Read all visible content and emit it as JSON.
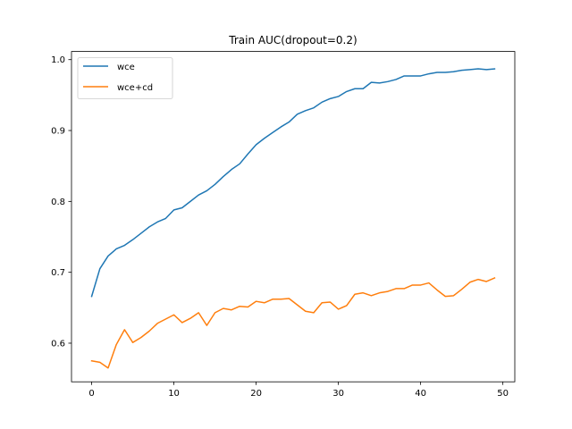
{
  "chart_data": {
    "type": "line",
    "title": "Train AUC(dropout=0.2)",
    "xlabel": "",
    "ylabel": "",
    "xlim": [
      -2.45,
      51.45
    ],
    "ylim": [
      0.5455,
      1.0115
    ],
    "xticks": [
      0,
      10,
      20,
      30,
      40,
      50
    ],
    "xtick_labels": [
      "0",
      "10",
      "20",
      "30",
      "40",
      "50"
    ],
    "yticks": [
      0.6,
      0.7,
      0.8,
      0.9,
      1.0
    ],
    "ytick_labels": [
      "0.6",
      "0.7",
      "0.8",
      "0.9",
      "1.0"
    ],
    "grid": false,
    "legend_position": "top-left",
    "x": [
      0,
      1,
      2,
      3,
      4,
      5,
      6,
      7,
      8,
      9,
      10,
      11,
      12,
      13,
      14,
      15,
      16,
      17,
      18,
      19,
      20,
      21,
      22,
      23,
      24,
      25,
      26,
      27,
      28,
      29,
      30,
      31,
      32,
      33,
      34,
      35,
      36,
      37,
      38,
      39,
      40,
      41,
      42,
      43,
      44,
      45,
      46,
      47,
      48,
      49
    ],
    "series": [
      {
        "name": "wce",
        "color": "#1f77b4",
        "values": [
          0.666,
          0.705,
          0.723,
          0.733,
          0.738,
          0.746,
          0.755,
          0.764,
          0.771,
          0.776,
          0.788,
          0.791,
          0.8,
          0.809,
          0.815,
          0.824,
          0.835,
          0.845,
          0.853,
          0.867,
          0.88,
          0.889,
          0.897,
          0.905,
          0.912,
          0.923,
          0.928,
          0.932,
          0.94,
          0.945,
          0.948,
          0.955,
          0.959,
          0.959,
          0.968,
          0.967,
          0.969,
          0.972,
          0.977,
          0.977,
          0.977,
          0.98,
          0.982,
          0.982,
          0.983,
          0.985,
          0.986,
          0.987,
          0.986,
          0.987
        ]
      },
      {
        "name": "wce+cd",
        "color": "#ff7f0e",
        "values": [
          0.575,
          0.573,
          0.565,
          0.598,
          0.619,
          0.601,
          0.608,
          0.617,
          0.628,
          0.634,
          0.64,
          0.629,
          0.635,
          0.643,
          0.625,
          0.643,
          0.649,
          0.647,
          0.652,
          0.651,
          0.659,
          0.657,
          0.662,
          0.662,
          0.663,
          0.654,
          0.645,
          0.643,
          0.657,
          0.658,
          0.648,
          0.653,
          0.669,
          0.671,
          0.667,
          0.671,
          0.673,
          0.677,
          0.677,
          0.682,
          0.682,
          0.685,
          0.675,
          0.666,
          0.667,
          0.676,
          0.686,
          0.69,
          0.687,
          0.692
        ]
      }
    ]
  }
}
